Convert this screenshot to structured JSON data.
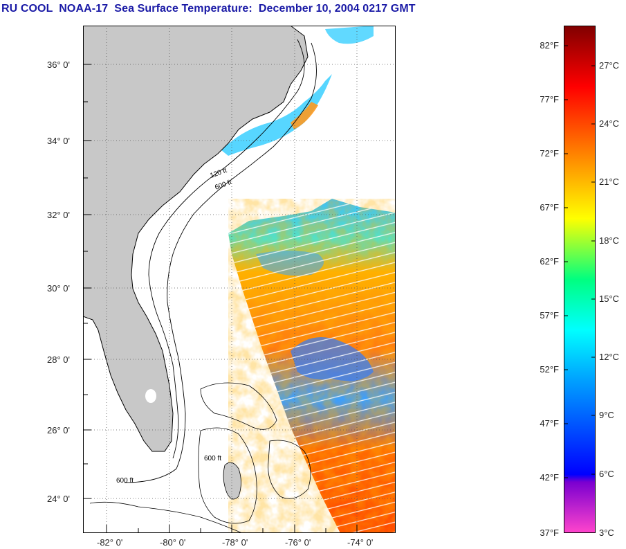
{
  "title": "RU COOL  NOAA-17  Sea Surface Temperature:  December 10, 2004 0217 GMT",
  "map": {
    "lat_labels": [
      "36° 0'",
      "34° 0'",
      "32° 0'",
      "30° 0'",
      "28° 0'",
      "26° 0'",
      "24° 0'"
    ],
    "lon_labels": [
      "-82° 0'",
      "-80° 0'",
      "-78° 0'",
      "-76° 0'",
      "-74° 0'"
    ],
    "lat_range": [
      23.0,
      37.0
    ],
    "lon_range": [
      -83.0,
      -73.0
    ],
    "grid": "dotted",
    "contour_labels": [
      "120 ft",
      "600 ft"
    ],
    "colors": {
      "land": "#c8c8c8",
      "ocean_nodata": "#ffffff",
      "coast": "#000000"
    }
  },
  "colorbar": {
    "fahrenheit_labels": [
      "82°F",
      "77°F",
      "72°F",
      "67°F",
      "62°F",
      "57°F",
      "52°F",
      "47°F",
      "42°F",
      "37°F"
    ],
    "celsius_labels": [
      "27°C",
      "24°C",
      "21°C",
      "18°C",
      "15°C",
      "12°C",
      "9°C",
      "6°C",
      "3°C"
    ],
    "range_f": [
      37,
      84
    ],
    "stops": [
      "#ff44cc",
      "#7a00d0",
      "#0000ff",
      "#00a0ff",
      "#00ffff",
      "#00ff80",
      "#ffff00",
      "#ff8000",
      "#ff0000",
      "#800000"
    ]
  }
}
